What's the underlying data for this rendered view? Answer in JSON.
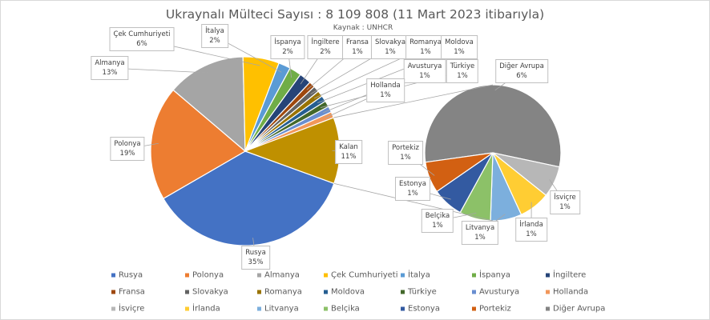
{
  "chart_data": {
    "type": "pie-of-pie",
    "title": "Ukraynalı Mülteci Sayısı : 8 109 808 (11 Mart 2023 itibarıyla)",
    "subtitle": "Kaynak : UNHCR",
    "legend_position": "bottom",
    "primary": [
      {
        "name": "Rusya",
        "value": 35,
        "label": "35%",
        "color": "#4472C4"
      },
      {
        "name": "Polonya",
        "value": 19,
        "label": "19%",
        "color": "#ED7D31"
      },
      {
        "name": "Almanya",
        "value": 13,
        "label": "13%",
        "color": "#A5A5A5"
      },
      {
        "name": "Çek Cumhuriyeti",
        "value": 6,
        "label": "6%",
        "color": "#FFC000"
      },
      {
        "name": "İtalya",
        "value": 2,
        "label": "2%",
        "color": "#5B9BD5"
      },
      {
        "name": "İspanya",
        "value": 2,
        "label": "2%",
        "color": "#70AD47"
      },
      {
        "name": "İngiltere",
        "value": 2,
        "label": "2%",
        "color": "#264478"
      },
      {
        "name": "Fransa",
        "value": 1,
        "label": "1%",
        "color": "#9E480E"
      },
      {
        "name": "Slovakya",
        "value": 1,
        "label": "1%",
        "color": "#636363"
      },
      {
        "name": "Romanya",
        "value": 1,
        "label": "1%",
        "color": "#997300"
      },
      {
        "name": "Moldova",
        "value": 1,
        "label": "1%",
        "color": "#255E91"
      },
      {
        "name": "Türkiye",
        "value": 1,
        "label": "1%",
        "color": "#43682B"
      },
      {
        "name": "Avusturya",
        "value": 1,
        "label": "1%",
        "color": "#698ED0"
      },
      {
        "name": "Hollanda",
        "value": 1,
        "label": "1%",
        "color": "#F1975A"
      },
      {
        "name": "Kalan",
        "value": 11,
        "label": "11%",
        "color": "#BF9000"
      }
    ],
    "secondary": [
      {
        "name": "Diğer Avrupa",
        "value": 6,
        "label": "6%",
        "color": "#848484"
      },
      {
        "name": "İsviçre",
        "value": 0.8,
        "label": "1%",
        "color": "#B7B7B7"
      },
      {
        "name": "İrlanda",
        "value": 0.8,
        "label": "1%",
        "color": "#FFCD33"
      },
      {
        "name": "Litvanya",
        "value": 0.8,
        "label": "1%",
        "color": "#7CAFDD"
      },
      {
        "name": "Belçika",
        "value": 0.8,
        "label": "1%",
        "color": "#8CC168"
      },
      {
        "name": "Estonya",
        "value": 0.8,
        "label": "1%",
        "color": "#335AA1"
      },
      {
        "name": "Portekiz",
        "value": 0.8,
        "label": "1%",
        "color": "#D26012"
      }
    ],
    "legend": [
      "Rusya",
      "Polonya",
      "Almanya",
      "Çek Cumhuriyeti",
      "İtalya",
      "İspanya",
      "İngiltere",
      "Fransa",
      "Slovakya",
      "Romanya",
      "Moldova",
      "Türkiye",
      "Avusturya",
      "Hollanda",
      "İsviçre",
      "İrlanda",
      "Litvanya",
      "Belçika",
      "Estonya",
      "Portekiz",
      "Diğer Avrupa"
    ]
  }
}
